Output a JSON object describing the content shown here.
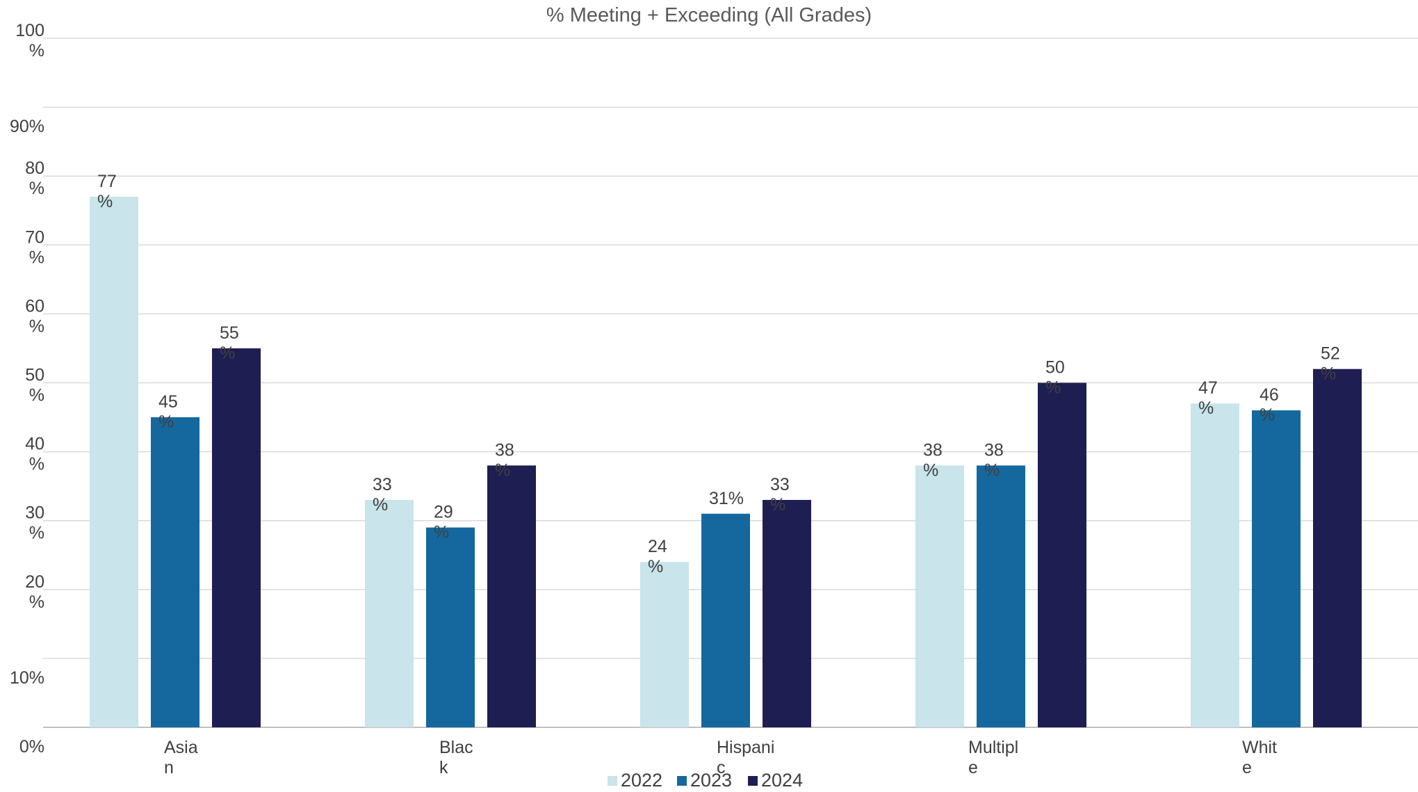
{
  "chart_data": {
    "type": "bar",
    "title": "% Meeting + Exceeding (All Grades)",
    "xlabel": "",
    "ylabel": "",
    "ylim": [
      0,
      100
    ],
    "yticks": [
      0,
      10,
      20,
      30,
      40,
      50,
      60,
      70,
      80,
      90,
      100
    ],
    "ytick_labels": [
      "0%",
      "10%",
      "20\n%",
      "30\n%",
      "40\n%",
      "50\n%",
      "60\n%",
      "70\n%",
      "80\n%",
      "90%",
      "100\n%"
    ],
    "grid": true,
    "legend_position": "bottom",
    "categories": [
      "Asia\nn",
      "Blac\nk",
      "Hispani\nc",
      "Multipl\ne",
      "Whit\ne"
    ],
    "series": [
      {
        "name": "2022",
        "color": "#C9E4EA",
        "values": [
          77,
          33,
          24,
          38,
          47
        ],
        "labels": [
          "77\n%",
          "33\n%",
          "24\n%",
          "38\n%",
          "47\n%"
        ]
      },
      {
        "name": "2023",
        "color": "#14689E",
        "values": [
          45,
          29,
          31,
          38,
          46
        ],
        "labels": [
          "45\n%",
          "29\n%",
          "31%",
          "38\n%",
          "46\n%"
        ]
      },
      {
        "name": "2024",
        "color": "#1F1E52",
        "values": [
          55,
          38,
          33,
          50,
          52
        ],
        "labels": [
          "55\n%",
          "38\n%",
          "33\n%",
          "50\n%",
          "52\n%"
        ]
      }
    ]
  }
}
